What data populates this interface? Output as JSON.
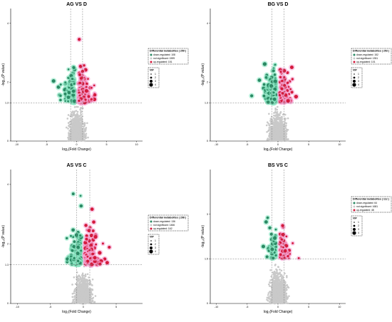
{
  "colors": {
    "down": "#2a8a64",
    "ns": "#c9c9c9",
    "up": "#d41a3c",
    "halo_down": "#8ee8c4",
    "halo_up": "#f6a6d6",
    "threshold": "#7a7a7a"
  },
  "axis_labels": {
    "x": "log₂(Fold Change)",
    "y": "-log₁₀(P value)"
  },
  "legend_labels": {
    "vip_title": "VIP",
    "vip_sizes": [
      "1",
      "2",
      "3",
      "4"
    ]
  },
  "chart_data": [
    {
      "type": "scatter",
      "title": "AG VS D",
      "xlim": [
        -11,
        11
      ],
      "ylim": [
        0,
        4.5
      ],
      "xticks": [
        "-10",
        "-5",
        "0",
        "5",
        "10"
      ],
      "xtick_values": [
        -10,
        -5,
        0,
        5,
        10
      ],
      "yticks": [
        "0",
        "1.3",
        "2",
        "4"
      ],
      "ytick_values": [
        0,
        1.3,
        2,
        4
      ],
      "thresholds": {
        "x": [
          -1,
          1
        ],
        "y": 1.3
      },
      "legend": {
        "title": "Differential metabolites ( 259 )",
        "placement": "right",
        "entries": [
          {
            "key": "down",
            "label": "down-regulated: 108"
          },
          {
            "key": "ns",
            "label": "not significant: 1599"
          },
          {
            "key": "up",
            "label": "up-regulated: 151"
          }
        ]
      },
      "series_counts": {
        "down": 108,
        "ns": 1599,
        "up": 151
      }
    },
    {
      "type": "scatter",
      "title": "BG VS D",
      "xlim": [
        -11,
        11
      ],
      "ylim": [
        0,
        4.5
      ],
      "xticks": [
        "-10",
        "-5",
        "0",
        "5",
        "10"
      ],
      "xtick_values": [
        -10,
        -5,
        0,
        5,
        10
      ],
      "yticks": [
        "0",
        "1.3",
        "2",
        "4"
      ],
      "ytick_values": [
        0,
        1.3,
        2,
        4
      ],
      "thresholds": {
        "x": [
          -1,
          1
        ],
        "y": 1.3
      },
      "legend": {
        "title": "Differential metabolites ( 253 )",
        "placement": "right",
        "entries": [
          {
            "key": "down",
            "label": "down-regulated: 152"
          },
          {
            "key": "ns",
            "label": "not significant: 1351"
          },
          {
            "key": "up",
            "label": "up-regulated: 101"
          }
        ]
      },
      "series_counts": {
        "down": 152,
        "ns": 1351,
        "up": 101
      }
    },
    {
      "type": "scatter",
      "title": "AS VS C",
      "xlim": [
        -11,
        9
      ],
      "ylim": [
        0,
        4.5
      ],
      "xticks": [
        "-10",
        "-5",
        "0",
        "5"
      ],
      "xtick_values": [
        -10,
        -5,
        0,
        5
      ],
      "yticks": [
        "0",
        "1.3",
        "2",
        "4"
      ],
      "ytick_values": [
        0,
        1.3,
        2,
        4
      ],
      "thresholds": {
        "x": [
          -1,
          1
        ],
        "y": 1.3
      },
      "legend": {
        "title": "Differential metabolites ( 298 )",
        "placement": "right",
        "entries": [
          {
            "key": "down",
            "label": "down-regulated: 136"
          },
          {
            "key": "ns",
            "label": "not significant: 1466"
          },
          {
            "key": "up",
            "label": "up-regulated: 162"
          }
        ]
      },
      "series_counts": {
        "down": 136,
        "ns": 1466,
        "up": 162
      }
    },
    {
      "type": "scatter",
      "title": "BS VS C",
      "xlim": [
        -11,
        11
      ],
      "ylim": [
        0,
        4.5
      ],
      "xticks": [
        "-10",
        "-5",
        "0",
        "5",
        "10"
      ],
      "xtick_values": [
        -10,
        -5,
        0,
        5,
        10
      ],
      "yticks": [
        "0",
        "1.5",
        "3"
      ],
      "ytick_values": [
        0,
        1.5,
        3
      ],
      "thresholds": {
        "x": [
          -1,
          1
        ],
        "y": 1.5
      },
      "legend": {
        "title": "Differential metabolites ( 112 )",
        "placement": "right",
        "entries": [
          {
            "key": "down",
            "label": "down-regulated: 64"
          },
          {
            "key": "ns",
            "label": "not significant: 1681"
          },
          {
            "key": "up",
            "label": "up-regulated: 48"
          }
        ]
      },
      "series_counts": {
        "down": 64,
        "ns": 1681,
        "up": 48
      }
    }
  ]
}
